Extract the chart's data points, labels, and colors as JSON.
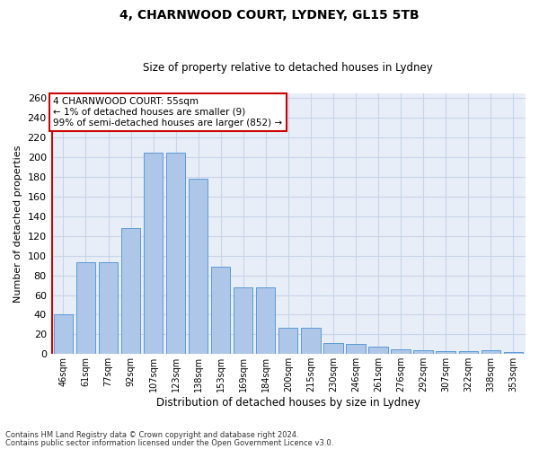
{
  "title": "4, CHARNWOOD COURT, LYDNEY, GL15 5TB",
  "subtitle": "Size of property relative to detached houses in Lydney",
  "xlabel": "Distribution of detached houses by size in Lydney",
  "ylabel": "Number of detached properties",
  "categories": [
    "46sqm",
    "61sqm",
    "77sqm",
    "92sqm",
    "107sqm",
    "123sqm",
    "138sqm",
    "153sqm",
    "169sqm",
    "184sqm",
    "200sqm",
    "215sqm",
    "230sqm",
    "246sqm",
    "261sqm",
    "276sqm",
    "292sqm",
    "307sqm",
    "322sqm",
    "338sqm",
    "353sqm"
  ],
  "values": [
    40,
    93,
    93,
    128,
    205,
    205,
    178,
    89,
    68,
    68,
    27,
    27,
    11,
    10,
    8,
    5,
    4,
    3,
    3,
    4,
    2
  ],
  "bar_color": "#aec6e8",
  "bar_edge_color": "#5b9bd5",
  "annotation_title": "4 CHARNWOOD COURT: 55sqm",
  "annotation_line1": "← 1% of detached houses are smaller (9)",
  "annotation_line2": "99% of semi-detached houses are larger (852) →",
  "annotation_box_color": "#ffffff",
  "annotation_box_edge": "#cc0000",
  "vline_color": "#cc0000",
  "ylim": [
    0,
    265
  ],
  "yticks": [
    0,
    20,
    40,
    60,
    80,
    100,
    120,
    140,
    160,
    180,
    200,
    220,
    240,
    260
  ],
  "grid_color": "#c8d4e8",
  "background_color": "#e8eef8",
  "footer1": "Contains HM Land Registry data © Crown copyright and database right 2024.",
  "footer2": "Contains public sector information licensed under the Open Government Licence v3.0."
}
